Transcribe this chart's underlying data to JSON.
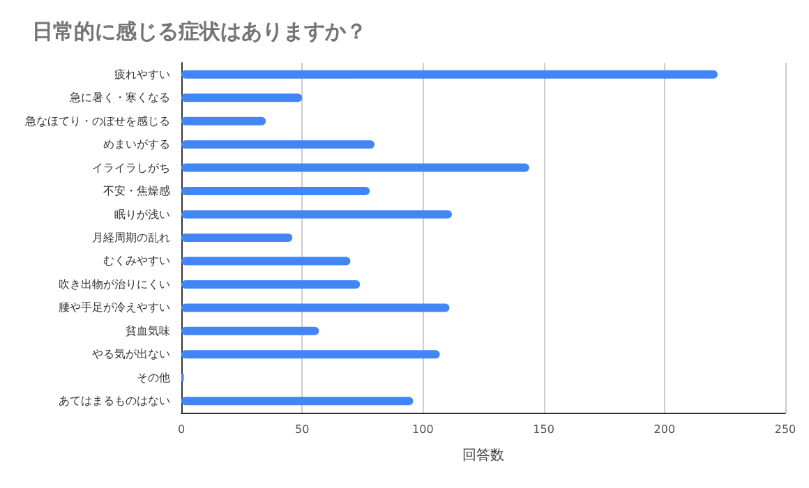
{
  "chart_data": {
    "type": "bar",
    "orientation": "horizontal",
    "title": "日常的に感じる症状はありますか？",
    "xlabel": "回答数",
    "categories": [
      "疲れやすい",
      "急に暑く・寒くなる",
      "急なほてり・のぼせを感じる",
      "めまいがする",
      "イライラしがち",
      "不安・焦燥感",
      "眠りが浅い",
      "月経周期の乱れ",
      "むくみやすい",
      "吹き出物が治りにくい",
      "腰や手足が冷えやすい",
      "貧血気味",
      "やる気が出ない",
      "その他",
      "あてはまるものはない"
    ],
    "values": [
      222,
      50,
      35,
      80,
      144,
      78,
      112,
      46,
      70,
      74,
      111,
      57,
      107,
      1,
      96
    ],
    "color": "#4285f4",
    "xlim": [
      0,
      250
    ],
    "xticks": [
      0,
      50,
      100,
      150,
      200,
      250
    ],
    "grid": "x"
  }
}
